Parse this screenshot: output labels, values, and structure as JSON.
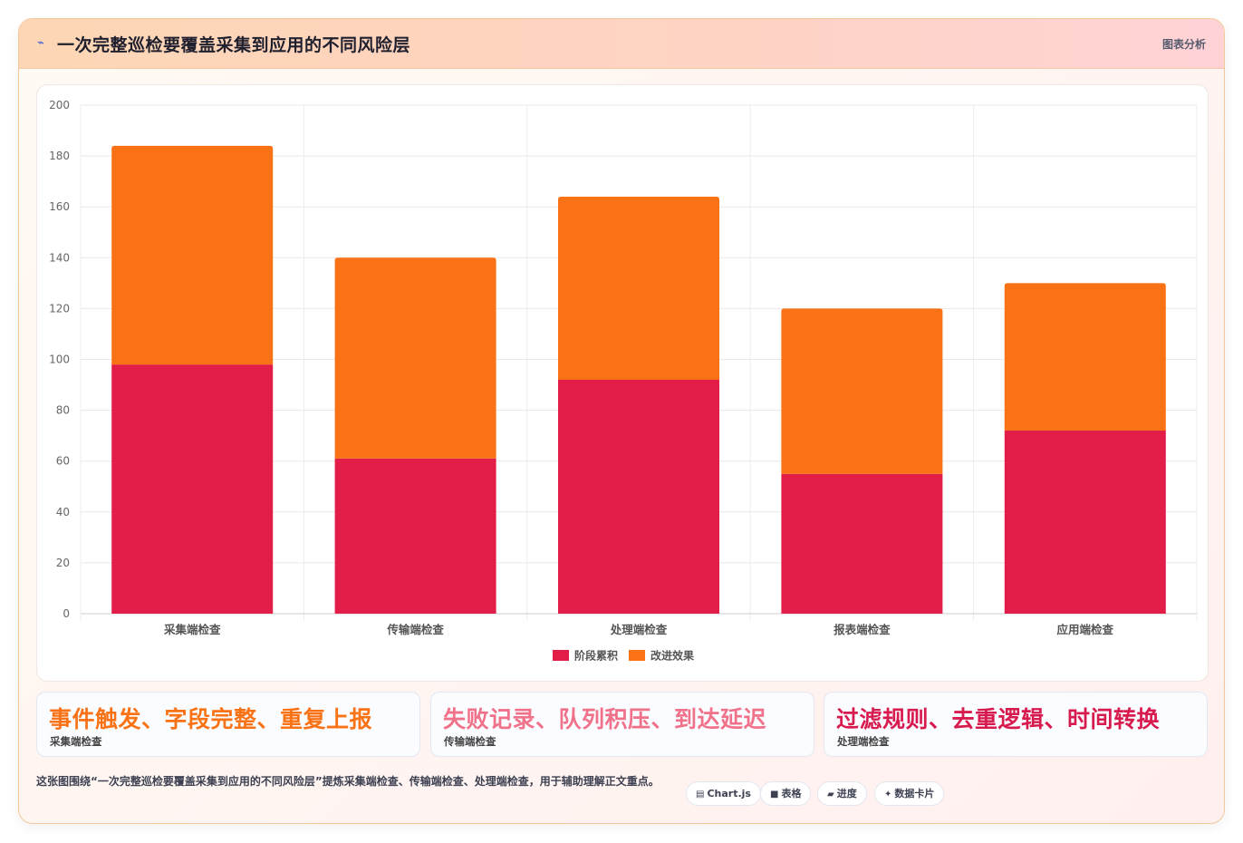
{
  "header": {
    "icon": "lightning-icon",
    "title": "一次完整巡检要覆盖采集到应用的不同风险层",
    "tag": "图表分析"
  },
  "chart_data": {
    "type": "bar",
    "stacked": true,
    "categories": [
      "采集端检查",
      "传输端检查",
      "处理端检查",
      "报表端检查",
      "应用端检查"
    ],
    "series": [
      {
        "name": "阶段累积",
        "color": "#e11d48",
        "values": [
          98,
          61,
          92,
          55,
          72
        ]
      },
      {
        "name": "改进效果",
        "color": "#f97316",
        "values": [
          86,
          79,
          72,
          65,
          58
        ]
      }
    ],
    "ylim": [
      0,
      200
    ],
    "yticks": [
      0,
      20,
      40,
      60,
      80,
      100,
      120,
      140,
      160,
      180,
      200
    ],
    "grid": true,
    "legend": "bottom"
  },
  "cards": [
    {
      "big": "事件触发、字段完整、重复上报",
      "small": "采集端检查",
      "color": "#f97316"
    },
    {
      "big": "失败记录、队列积压、到达延迟",
      "small": "传输端检查",
      "color": "#f0728a"
    },
    {
      "big": "过滤规则、去重逻辑、时间转换",
      "small": "处理端检查",
      "color": "#d81b4f"
    }
  ],
  "footer": {
    "text": "这张图围绕“一次完整巡检要覆盖采集到应用的不同风险层”提炼采集端检查、传输端检查、处理端检查，用于辅助理解正文重点。",
    "chips": [
      {
        "icon": "▤",
        "label": "Chart.js"
      },
      {
        "icon": "■",
        "label": "表格"
      },
      {
        "icon": "▰",
        "label": "进度"
      },
      {
        "icon": "✦",
        "label": "数据卡片"
      }
    ]
  }
}
